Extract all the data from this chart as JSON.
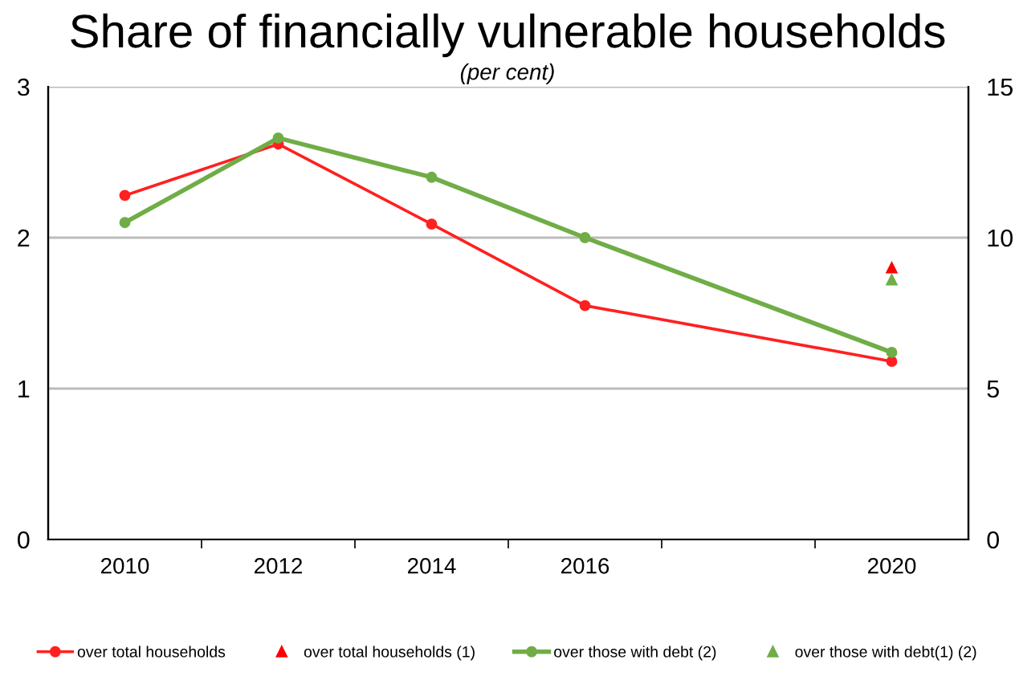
{
  "chart_data": {
    "type": "line",
    "title": "Share of financially vulnerable households",
    "subtitle": "(per cent)",
    "xlim": [
      2009,
      2021
    ],
    "xticks": [
      {
        "value": 2010,
        "label": "2010"
      },
      {
        "value": 2011,
        "label": null
      },
      {
        "value": 2012,
        "label": "2012"
      },
      {
        "value": 2013,
        "label": null
      },
      {
        "value": 2014,
        "label": "2014"
      },
      {
        "value": 2015,
        "label": null
      },
      {
        "value": 2016,
        "label": "2016"
      },
      {
        "value": 2017,
        "label": null
      },
      {
        "value": 2019,
        "label": null
      },
      {
        "value": 2020,
        "label": "2020"
      }
    ],
    "ylim": [
      0,
      3
    ],
    "yticks": [
      0,
      1,
      2,
      3
    ],
    "y2lim": [
      0,
      15
    ],
    "y2ticks": [
      0,
      5,
      10,
      15
    ],
    "grid": "y",
    "legend": "bottom",
    "line_style": "solid",
    "series": [
      {
        "name": "over total households",
        "marker": "circle",
        "color": "#ff2020",
        "x": [
          2010,
          2012,
          2014,
          2016,
          2020
        ],
        "values": [
          2.28,
          2.62,
          2.09,
          1.55,
          1.18
        ]
      },
      {
        "name": "over total households (1)",
        "type": "scatter",
        "marker": "triangle",
        "color": "#ff0000",
        "x": [
          2020
        ],
        "values": [
          1.8
        ]
      },
      {
        "name": "over those with debt (2)",
        "marker": "circle",
        "color": "#70ad47",
        "axis": "y2",
        "x": [
          2010,
          2012,
          2014,
          2016,
          2020
        ],
        "values": [
          10.5,
          13.3,
          12.0,
          10.0,
          6.2
        ]
      },
      {
        "name": "over those with debt(1) (2)",
        "type": "scatter",
        "marker": "triangle",
        "color": "#70ad47",
        "axis": "y2",
        "x": [
          2020
        ],
        "values": [
          8.6
        ]
      }
    ]
  }
}
